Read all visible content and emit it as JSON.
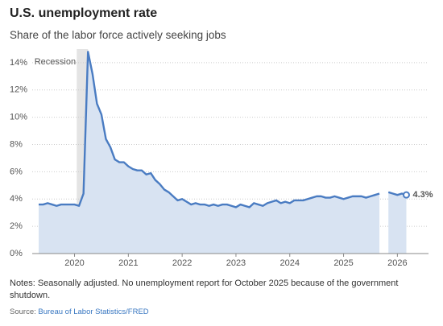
{
  "chart_data": {
    "type": "line",
    "title": "U.S. unemployment rate",
    "subtitle": "Share of the labor force actively seeking jobs",
    "categories": [
      null,
      null,
      null,
      null,
      null,
      null,
      null,
      null,
      "2020",
      null,
      null,
      null,
      null,
      null,
      null,
      null,
      null,
      null,
      null,
      null,
      "2021",
      null,
      null,
      null,
      null,
      null,
      null,
      null,
      null,
      null,
      null,
      null,
      "2022",
      null,
      null,
      null,
      null,
      null,
      null,
      null,
      null,
      null,
      null,
      null,
      "2023",
      null,
      null,
      null,
      null,
      null,
      null,
      null,
      null,
      null,
      null,
      null,
      "2024",
      null,
      null,
      null,
      null,
      null,
      null,
      null,
      null,
      null,
      null,
      null,
      "2025",
      null,
      null,
      null,
      null,
      null,
      null,
      null,
      null,
      null,
      null,
      null,
      "2026",
      null,
      null
    ],
    "series": [
      {
        "name": "Unemployment rate",
        "color": "#4a7cc2",
        "values": [
          3.6,
          3.6,
          3.7,
          3.6,
          3.5,
          3.6,
          3.6,
          3.6,
          3.6,
          3.5,
          4.4,
          14.8,
          13.2,
          11.0,
          10.2,
          8.4,
          7.8,
          6.9,
          6.7,
          6.7,
          6.4,
          6.2,
          6.1,
          6.1,
          5.8,
          5.9,
          5.4,
          5.1,
          4.7,
          4.5,
          4.2,
          3.9,
          4.0,
          3.8,
          3.6,
          3.7,
          3.6,
          3.6,
          3.5,
          3.6,
          3.5,
          3.6,
          3.6,
          3.5,
          3.4,
          3.6,
          3.5,
          3.4,
          3.7,
          3.6,
          3.5,
          3.7,
          3.8,
          3.9,
          3.7,
          3.8,
          3.7,
          3.9,
          3.9,
          3.9,
          4.0,
          4.1,
          4.2,
          4.2,
          4.1,
          4.1,
          4.2,
          4.1,
          4.0,
          4.1,
          4.2,
          4.2,
          4.2,
          4.1,
          4.2,
          4.3,
          4.4,
          null,
          4.5,
          4.4,
          4.3,
          4.4,
          4.3
        ],
        "value_labels": [
          null,
          null,
          null,
          null,
          null,
          null,
          null,
          null,
          null,
          null,
          null,
          null,
          null,
          null,
          null,
          null,
          null,
          null,
          null,
          null,
          null,
          null,
          null,
          null,
          null,
          null,
          null,
          null,
          null,
          null,
          null,
          null,
          null,
          null,
          null,
          null,
          null,
          null,
          null,
          null,
          null,
          null,
          null,
          null,
          null,
          null,
          null,
          null,
          null,
          null,
          null,
          null,
          null,
          null,
          null,
          null,
          null,
          null,
          null,
          null,
          null,
          null,
          null,
          null,
          null,
          null,
          null,
          null,
          null,
          null,
          null,
          null,
          null,
          null,
          null,
          null,
          null,
          null,
          null,
          null,
          null,
          null,
          "4.3%"
        ]
      }
    ],
    "area_color": "#d8e3f2",
    "recession": {
      "label": "Recession",
      "start": 9,
      "end": 11,
      "color": "#e4e4e4"
    },
    "ylim": [
      0,
      15
    ],
    "yticks": [
      {
        "value": 0,
        "label": "0%"
      },
      {
        "value": 2,
        "label": "2%"
      },
      {
        "value": 4,
        "label": "4%"
      },
      {
        "value": 6,
        "label": "6%"
      },
      {
        "value": 8,
        "label": "8%"
      },
      {
        "value": 10,
        "label": "10%"
      },
      {
        "value": 12,
        "label": "12%"
      },
      {
        "value": 14,
        "label": "14%"
      }
    ],
    "grid": true,
    "notes": "Notes: Seasonally adjusted. No unemployment report for October 2025 because of the government shutdown.",
    "source_prefix": "Source:",
    "source": "Bureau of Labor Statistics/FRED"
  }
}
